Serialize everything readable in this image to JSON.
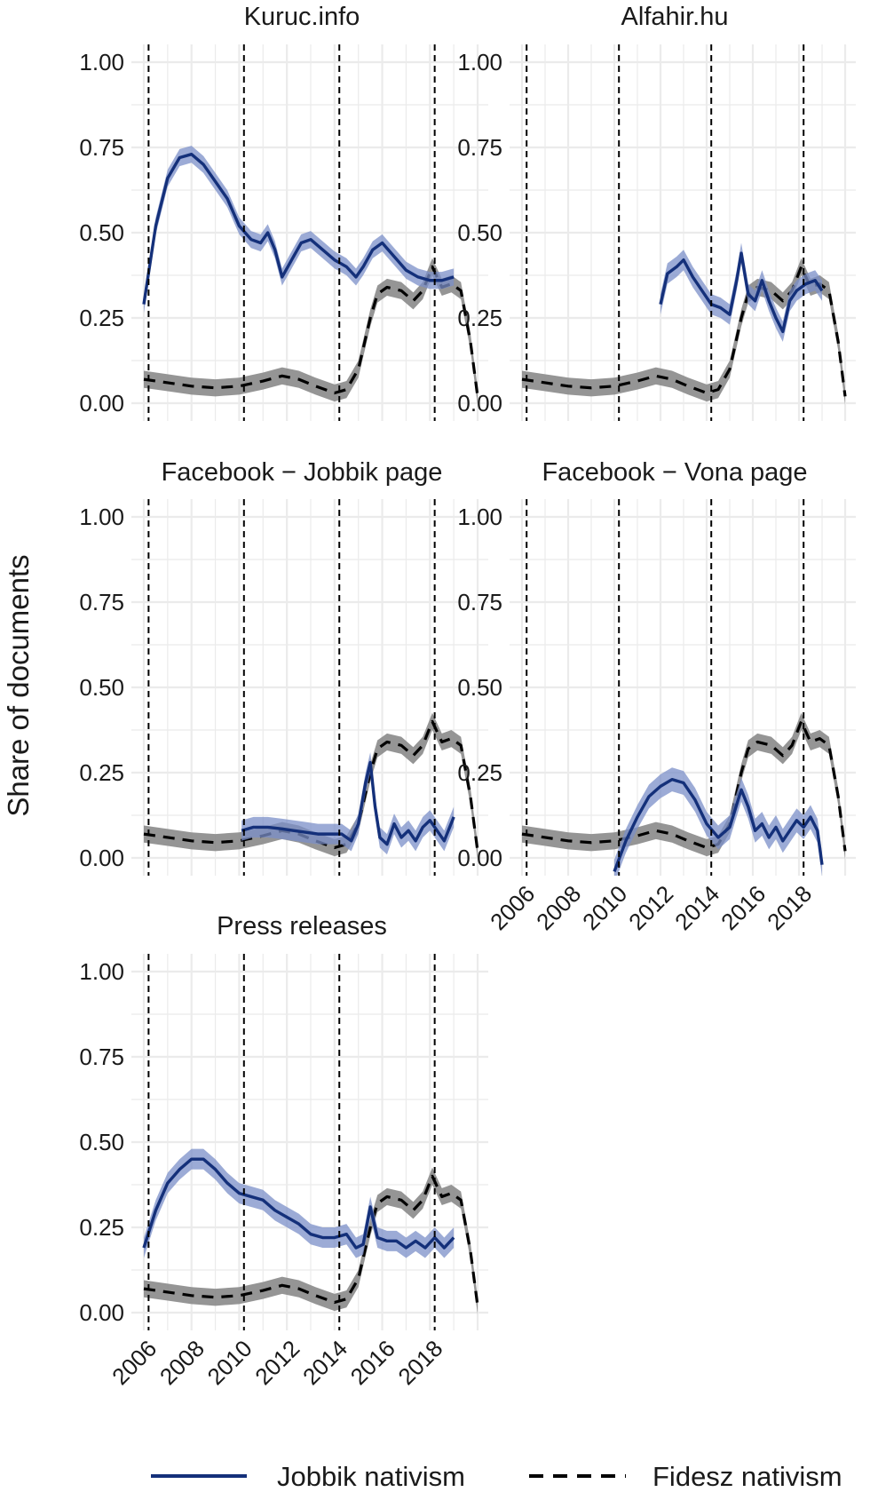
{
  "chart_data": {
    "type": "line",
    "ylabel": "Share of documents",
    "ylim": [
      0,
      1
    ],
    "xlim": [
      2006,
      2020
    ],
    "x_ticks": [
      "2006",
      "2008",
      "2010",
      "2012",
      "2014",
      "2016",
      "2018"
    ],
    "y_ticks": [
      "0.00",
      "0.25",
      "0.50",
      "0.75",
      "1.00"
    ],
    "vlines": [
      2006.2,
      2010.2,
      2014.2,
      2018.2
    ],
    "grid": true,
    "legend_position": "bottom",
    "colors": {
      "jobbik": "#14307a",
      "jobbik_band": "#7b8fc8",
      "fidesz": "#000000",
      "fidesz_band": "#8a8a8a"
    },
    "legend": [
      {
        "label": "Jobbik nativism",
        "style": "solid"
      },
      {
        "label": "Fidesz nativism",
        "style": "dashed"
      }
    ],
    "fidesz": {
      "points": [
        [
          2006,
          0.07
        ],
        [
          2007,
          0.06
        ],
        [
          2008,
          0.05
        ],
        [
          2009,
          0.045
        ],
        [
          2010,
          0.05
        ],
        [
          2011,
          0.065
        ],
        [
          2011.8,
          0.08
        ],
        [
          2012.5,
          0.07
        ],
        [
          2013.2,
          0.05
        ],
        [
          2014,
          0.03
        ],
        [
          2014.5,
          0.04
        ],
        [
          2015,
          0.1
        ],
        [
          2015.5,
          0.25
        ],
        [
          2015.8,
          0.32
        ],
        [
          2016.2,
          0.34
        ],
        [
          2016.8,
          0.33
        ],
        [
          2017.3,
          0.3
        ],
        [
          2017.7,
          0.33
        ],
        [
          2018.1,
          0.4
        ],
        [
          2018.5,
          0.34
        ],
        [
          2018.9,
          0.35
        ],
        [
          2019.3,
          0.33
        ],
        [
          2019.7,
          0.18
        ],
        [
          2020,
          0.02
        ]
      ],
      "band": 0.025
    },
    "panels": [
      {
        "title": "Kuruc.info",
        "jobbik": [
          [
            2006,
            0.29
          ],
          [
            2006.5,
            0.52
          ],
          [
            2007,
            0.66
          ],
          [
            2007.5,
            0.72
          ],
          [
            2008,
            0.73
          ],
          [
            2008.5,
            0.7
          ],
          [
            2009,
            0.65
          ],
          [
            2009.5,
            0.6
          ],
          [
            2010,
            0.52
          ],
          [
            2010.5,
            0.48
          ],
          [
            2010.9,
            0.47
          ],
          [
            2011.2,
            0.5
          ],
          [
            2011.5,
            0.45
          ],
          [
            2011.8,
            0.37
          ],
          [
            2012.2,
            0.42
          ],
          [
            2012.6,
            0.47
          ],
          [
            2013,
            0.48
          ],
          [
            2013.5,
            0.45
          ],
          [
            2014,
            0.42
          ],
          [
            2014.5,
            0.4
          ],
          [
            2014.9,
            0.37
          ],
          [
            2015.2,
            0.4
          ],
          [
            2015.6,
            0.45
          ],
          [
            2016,
            0.47
          ],
          [
            2016.5,
            0.43
          ],
          [
            2017,
            0.39
          ],
          [
            2017.5,
            0.37
          ],
          [
            2018,
            0.36
          ],
          [
            2018.5,
            0.36
          ],
          [
            2019,
            0.37
          ]
        ],
        "band": 0.025
      },
      {
        "title": "Alfahir.hu",
        "jobbik": [
          [
            2012,
            0.29
          ],
          [
            2012.3,
            0.38
          ],
          [
            2012.7,
            0.4
          ],
          [
            2013,
            0.42
          ],
          [
            2013.4,
            0.37
          ],
          [
            2013.8,
            0.33
          ],
          [
            2014.2,
            0.29
          ],
          [
            2014.6,
            0.28
          ],
          [
            2015,
            0.26
          ],
          [
            2015.3,
            0.36
          ],
          [
            2015.5,
            0.44
          ],
          [
            2015.8,
            0.32
          ],
          [
            2016.1,
            0.3
          ],
          [
            2016.4,
            0.36
          ],
          [
            2016.7,
            0.3
          ],
          [
            2017,
            0.25
          ],
          [
            2017.3,
            0.21
          ],
          [
            2017.6,
            0.3
          ],
          [
            2017.9,
            0.33
          ],
          [
            2018.3,
            0.35
          ],
          [
            2018.7,
            0.36
          ],
          [
            2019,
            0.33
          ]
        ],
        "band": 0.03
      },
      {
        "title": "Facebook − Jobbik page",
        "jobbik": [
          [
            2010.1,
            0.08
          ],
          [
            2010.6,
            0.09
          ],
          [
            2011.2,
            0.09
          ],
          [
            2011.8,
            0.085
          ],
          [
            2012.3,
            0.08
          ],
          [
            2012.8,
            0.075
          ],
          [
            2013.3,
            0.07
          ],
          [
            2013.8,
            0.07
          ],
          [
            2014.3,
            0.07
          ],
          [
            2014.7,
            0.05
          ],
          [
            2015,
            0.1
          ],
          [
            2015.3,
            0.22
          ],
          [
            2015.5,
            0.28
          ],
          [
            2015.7,
            0.15
          ],
          [
            2015.9,
            0.06
          ],
          [
            2016.2,
            0.04
          ],
          [
            2016.5,
            0.1
          ],
          [
            2016.8,
            0.06
          ],
          [
            2017.1,
            0.08
          ],
          [
            2017.4,
            0.05
          ],
          [
            2017.7,
            0.09
          ],
          [
            2018,
            0.11
          ],
          [
            2018.3,
            0.08
          ],
          [
            2018.6,
            0.05
          ],
          [
            2019,
            0.12
          ]
        ],
        "band": 0.03
      },
      {
        "title": "Facebook − Vona page",
        "jobbik": [
          [
            2010,
            -0.04
          ],
          [
            2010.5,
            0.05
          ],
          [
            2011,
            0.12
          ],
          [
            2011.5,
            0.18
          ],
          [
            2012,
            0.21
          ],
          [
            2012.5,
            0.23
          ],
          [
            2013,
            0.22
          ],
          [
            2013.5,
            0.17
          ],
          [
            2014,
            0.1
          ],
          [
            2014.5,
            0.06
          ],
          [
            2015,
            0.09
          ],
          [
            2015.5,
            0.2
          ],
          [
            2015.8,
            0.15
          ],
          [
            2016.1,
            0.08
          ],
          [
            2016.4,
            0.1
          ],
          [
            2016.7,
            0.06
          ],
          [
            2017,
            0.09
          ],
          [
            2017.3,
            0.05
          ],
          [
            2017.6,
            0.08
          ],
          [
            2017.9,
            0.11
          ],
          [
            2018.2,
            0.09
          ],
          [
            2018.5,
            0.12
          ],
          [
            2018.8,
            0.08
          ],
          [
            2019,
            -0.02
          ]
        ],
        "band": 0.035
      },
      {
        "title": "Press releases",
        "jobbik": [
          [
            2006,
            0.19
          ],
          [
            2006.5,
            0.3
          ],
          [
            2007,
            0.38
          ],
          [
            2007.5,
            0.42
          ],
          [
            2008,
            0.45
          ],
          [
            2008.5,
            0.45
          ],
          [
            2009,
            0.42
          ],
          [
            2009.5,
            0.38
          ],
          [
            2010,
            0.35
          ],
          [
            2010.5,
            0.34
          ],
          [
            2011,
            0.33
          ],
          [
            2011.5,
            0.3
          ],
          [
            2012,
            0.28
          ],
          [
            2012.5,
            0.26
          ],
          [
            2013,
            0.23
          ],
          [
            2013.5,
            0.22
          ],
          [
            2014,
            0.22
          ],
          [
            2014.5,
            0.23
          ],
          [
            2014.9,
            0.19
          ],
          [
            2015.2,
            0.2
          ],
          [
            2015.5,
            0.31
          ],
          [
            2015.8,
            0.22
          ],
          [
            2016.2,
            0.21
          ],
          [
            2016.6,
            0.21
          ],
          [
            2017,
            0.19
          ],
          [
            2017.4,
            0.21
          ],
          [
            2017.8,
            0.19
          ],
          [
            2018.2,
            0.22
          ],
          [
            2018.6,
            0.19
          ],
          [
            2019,
            0.22
          ]
        ],
        "band": 0.03
      }
    ]
  }
}
